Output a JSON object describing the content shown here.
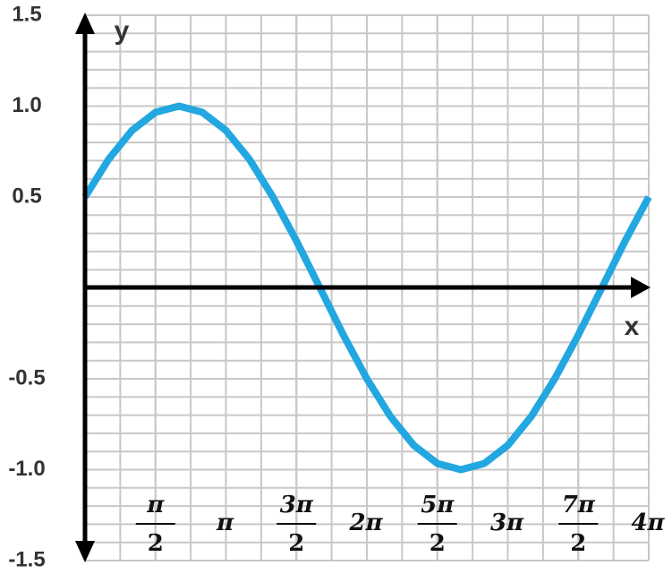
{
  "chart_data": {
    "type": "line",
    "x_label": "x",
    "y_label": "y",
    "x": [
      0,
      0.167,
      0.333,
      0.5,
      0.667,
      0.833,
      1,
      1.167,
      1.333,
      1.5,
      1.667,
      1.833,
      2,
      2.167,
      2.333,
      2.5,
      2.667,
      2.833,
      3,
      3.167,
      3.333,
      3.5,
      3.667,
      3.833,
      4
    ],
    "series": [
      {
        "color": "#22a7e0",
        "values": [
          0.5,
          0.707,
          0.866,
          0.966,
          1,
          0.966,
          0.866,
          0.707,
          0.5,
          0.259,
          0,
          -0.259,
          -0.5,
          -0.707,
          -0.866,
          -0.966,
          -1,
          -0.966,
          -0.866,
          -0.707,
          -0.5,
          -0.259,
          0,
          0.259,
          0.5
        ]
      }
    ],
    "xlim": [
      0,
      4
    ],
    "ylim": [
      -1.5,
      1.5
    ],
    "xticks": [
      {
        "value": 0.5,
        "label": {
          "numerator": "π",
          "denominator": "2"
        }
      },
      {
        "value": 1,
        "label": "π"
      },
      {
        "value": 1.5,
        "label": {
          "numerator": "3π",
          "denominator": "2"
        }
      },
      {
        "value": 2,
        "label": "2π"
      },
      {
        "value": 2.5,
        "label": {
          "numerator": "5π",
          "denominator": "2"
        }
      },
      {
        "value": 3,
        "label": "3π"
      },
      {
        "value": 3.5,
        "label": {
          "numerator": "7π",
          "denominator": "2"
        }
      },
      {
        "value": 4,
        "label": "4π"
      }
    ],
    "yticks": [
      {
        "value": 1.5,
        "label": "1.5"
      },
      {
        "value": 1,
        "label": "1.0"
      },
      0.5,
      -0.5,
      {
        "value": -1,
        "label": "-1.0"
      },
      -1.5
    ],
    "grid": true
  }
}
